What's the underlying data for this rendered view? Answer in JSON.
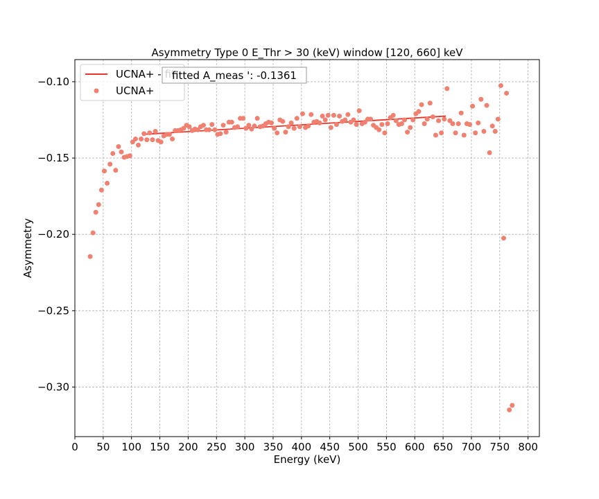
{
  "chart_data": {
    "type": "scatter",
    "title": "Asymmetry Type 0 E_Thr > 30 (keV) window [120, 660] keV",
    "xlabel": "Energy (keV)",
    "ylabel": "Asymmetry",
    "xlim": [
      0,
      820
    ],
    "ylim": [
      -0.3325,
      -0.0855
    ],
    "xticks": [
      0,
      50,
      100,
      150,
      200,
      250,
      300,
      350,
      400,
      450,
      500,
      550,
      600,
      650,
      700,
      750,
      800
    ],
    "yticks": [
      -0.1,
      -0.15,
      -0.2,
      -0.25,
      -0.3
    ],
    "xtick_labels": [
      "0",
      "50",
      "100",
      "150",
      "200",
      "250",
      "300",
      "350",
      "400",
      "450",
      "500",
      "550",
      "600",
      "650",
      "700",
      "750",
      "800"
    ],
    "ytick_labels": [
      "−0.10",
      "−0.15",
      "−0.20",
      "−0.25",
      "−0.30"
    ],
    "grid": true,
    "legend_position": "top-left",
    "annotation": "fitted A_meas ': -0.1361",
    "colors": {
      "points": "#f08070",
      "fit": "#e8342a"
    },
    "fit_line": {
      "name": "UCNA+ - fit",
      "x": [
        120,
        655
      ],
      "y": [
        -0.1345,
        -0.1225
      ]
    },
    "series": [
      {
        "name": "UCNA+",
        "points": [
          [
            27,
            -0.2145
          ],
          [
            32,
            -0.199
          ],
          [
            37,
            -0.1855
          ],
          [
            42,
            -0.1805
          ],
          [
            47,
            -0.171
          ],
          [
            52,
            -0.1585
          ],
          [
            57,
            -0.1665
          ],
          [
            62,
            -0.154
          ],
          [
            67,
            -0.147
          ],
          [
            72,
            -0.158
          ],
          [
            77,
            -0.1425
          ],
          [
            82,
            -0.146
          ],
          [
            87,
            -0.1495
          ],
          [
            92,
            -0.149
          ],
          [
            97,
            -0.1485
          ],
          [
            102,
            -0.1395
          ],
          [
            107,
            -0.1375
          ],
          [
            112,
            -0.1415
          ],
          [
            117,
            -0.1375
          ],
          [
            122,
            -0.134
          ],
          [
            127,
            -0.138
          ],
          [
            132,
            -0.1335
          ],
          [
            137,
            -0.138
          ],
          [
            142,
            -0.1325
          ],
          [
            147,
            -0.1385
          ],
          [
            152,
            -0.1395
          ],
          [
            157,
            -0.1355
          ],
          [
            162,
            -0.1345
          ],
          [
            167,
            -0.1345
          ],
          [
            172,
            -0.1375
          ],
          [
            177,
            -0.132
          ],
          [
            182,
            -0.132
          ],
          [
            187,
            -0.1315
          ],
          [
            192,
            -0.1305
          ],
          [
            197,
            -0.1285
          ],
          [
            202,
            -0.1295
          ],
          [
            207,
            -0.132
          ],
          [
            212,
            -0.131
          ],
          [
            217,
            -0.1315
          ],
          [
            222,
            -0.1295
          ],
          [
            227,
            -0.1285
          ],
          [
            232,
            -0.1315
          ],
          [
            237,
            -0.1315
          ],
          [
            242,
            -0.128
          ],
          [
            247,
            -0.1315
          ],
          [
            252,
            -0.1345
          ],
          [
            257,
            -0.134
          ],
          [
            262,
            -0.1285
          ],
          [
            267,
            -0.133
          ],
          [
            272,
            -0.1265
          ],
          [
            277,
            -0.1265
          ],
          [
            282,
            -0.13
          ],
          [
            287,
            -0.1295
          ],
          [
            292,
            -0.124
          ],
          [
            297,
            -0.124
          ],
          [
            302,
            -0.1305
          ],
          [
            307,
            -0.1285
          ],
          [
            312,
            -0.131
          ],
          [
            317,
            -0.129
          ],
          [
            322,
            -0.124
          ],
          [
            327,
            -0.1295
          ],
          [
            332,
            -0.129
          ],
          [
            337,
            -0.1275
          ],
          [
            342,
            -0.1265
          ],
          [
            347,
            -0.127
          ],
          [
            352,
            -0.1305
          ],
          [
            357,
            -0.1335
          ],
          [
            362,
            -0.125
          ],
          [
            367,
            -0.126
          ],
          [
            372,
            -0.133
          ],
          [
            377,
            -0.1295
          ],
          [
            382,
            -0.127
          ],
          [
            387,
            -0.1305
          ],
          [
            392,
            -0.124
          ],
          [
            397,
            -0.1295
          ],
          [
            402,
            -0.121
          ],
          [
            407,
            -0.13
          ],
          [
            412,
            -0.129
          ],
          [
            417,
            -0.1215
          ],
          [
            422,
            -0.1265
          ],
          [
            427,
            -0.126
          ],
          [
            432,
            -0.127
          ],
          [
            437,
            -0.1225
          ],
          [
            442,
            -0.125
          ],
          [
            447,
            -0.122
          ],
          [
            452,
            -0.13
          ],
          [
            457,
            -0.122
          ],
          [
            462,
            -0.128
          ],
          [
            467,
            -0.1225
          ],
          [
            472,
            -0.126
          ],
          [
            477,
            -0.125
          ],
          [
            482,
            -0.1215
          ],
          [
            487,
            -0.1265
          ],
          [
            492,
            -0.125
          ],
          [
            497,
            -0.128
          ],
          [
            502,
            -0.119
          ],
          [
            507,
            -0.1275
          ],
          [
            512,
            -0.1265
          ],
          [
            517,
            -0.1245
          ],
          [
            522,
            -0.1245
          ],
          [
            527,
            -0.1285
          ],
          [
            532,
            -0.13
          ],
          [
            537,
            -0.1315
          ],
          [
            542,
            -0.128
          ],
          [
            547,
            -0.1335
          ],
          [
            552,
            -0.1275
          ],
          [
            557,
            -0.1235
          ],
          [
            562,
            -0.122
          ],
          [
            567,
            -0.1255
          ],
          [
            572,
            -0.128
          ],
          [
            577,
            -0.1275
          ],
          [
            582,
            -0.125
          ],
          [
            587,
            -0.133
          ],
          [
            592,
            -0.13
          ],
          [
            597,
            -0.125
          ],
          [
            602,
            -0.121
          ],
          [
            607,
            -0.1195
          ],
          [
            612,
            -0.115
          ],
          [
            617,
            -0.1275
          ],
          [
            622,
            -0.1245
          ],
          [
            627,
            -0.114
          ],
          [
            632,
            -0.123
          ],
          [
            637,
            -0.135
          ],
          [
            642,
            -0.1255
          ],
          [
            647,
            -0.1335
          ],
          [
            652,
            -0.1245
          ],
          [
            657,
            -0.1045
          ],
          [
            662,
            -0.1255
          ],
          [
            667,
            -0.1275
          ],
          [
            672,
            -0.1335
          ],
          [
            677,
            -0.1275
          ],
          [
            682,
            -0.1205
          ],
          [
            687,
            -0.135
          ],
          [
            692,
            -0.1275
          ],
          [
            697,
            -0.128
          ],
          [
            702,
            -0.116
          ],
          [
            707,
            -0.1335
          ],
          [
            712,
            -0.127
          ],
          [
            717,
            -0.1115
          ],
          [
            722,
            -0.1325
          ],
          [
            727,
            -0.1155
          ],
          [
            732,
            -0.1465
          ],
          [
            737,
            -0.129
          ],
          [
            742,
            -0.1325
          ],
          [
            747,
            -0.1245
          ],
          [
            752,
            -0.1025
          ],
          [
            757,
            -0.2025
          ],
          [
            762,
            -0.1075
          ],
          [
            767,
            -0.315
          ],
          [
            772,
            -0.312
          ]
        ]
      }
    ]
  }
}
